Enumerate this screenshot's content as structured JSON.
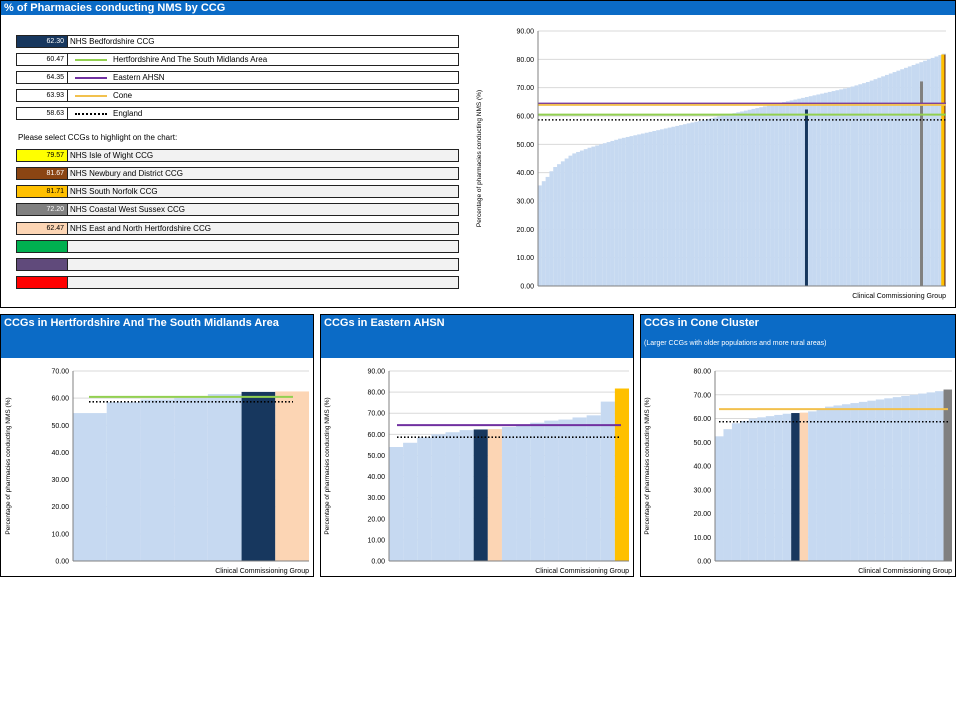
{
  "main_panel": {
    "title": "% of Pharmacies conducting NMS by CCG",
    "legend": [
      {
        "value": "62.30",
        "label": "NHS Bedfordshire CCG",
        "kind": "swatch",
        "color": "#17375e",
        "text_color": "#ffffff"
      },
      {
        "value": "60.47",
        "label": "Hertfordshire And The South Midlands Area",
        "kind": "line",
        "color": "#92d050"
      },
      {
        "value": "64.35",
        "label": "Eastern AHSN",
        "kind": "line",
        "color": "#7030a0"
      },
      {
        "value": "63.93",
        "label": "Cone",
        "kind": "line",
        "color": "#f2c14e"
      },
      {
        "value": "58.63",
        "label": "England",
        "kind": "dotted",
        "color": "#000000"
      }
    ],
    "select_prompt": "Please select CCGs to highlight on the chart:",
    "highlights": [
      {
        "value": "79.57",
        "label": "NHS Isle of Wight CCG",
        "color": "#ffff00",
        "text_color": "#000000"
      },
      {
        "value": "81.67",
        "label": "NHS Newbury and District CCG",
        "color": "#8b4513",
        "text_color": "#ffffff"
      },
      {
        "value": "81.71",
        "label": "NHS South Norfolk CCG",
        "color": "#ffc000",
        "text_color": "#000000"
      },
      {
        "value": "72.20",
        "label": "NHS Coastal West Sussex CCG",
        "color": "#808080",
        "text_color": "#ffffff"
      },
      {
        "value": "62.47",
        "label": "NHS East and North Hertfordshire CCG",
        "color": "#fcd5b4",
        "text_color": "#000000"
      },
      {
        "value": "",
        "label": "",
        "color": "#00b050",
        "text_color": "#000000"
      },
      {
        "value": "",
        "label": "",
        "color": "#604a7b",
        "text_color": "#000000"
      },
      {
        "value": "",
        "label": "",
        "color": "#ff0000",
        "text_color": "#000000"
      }
    ]
  },
  "sub_panels": [
    {
      "title": "CCGs in Hertfordshire And The South Midlands Area",
      "subtitle": ""
    },
    {
      "title": "CCGs in Eastern AHSN",
      "subtitle": ""
    },
    {
      "title": "CCGs in Cone Cluster",
      "subtitle": "(Larger CCGs with older populations and more rural areas)"
    }
  ],
  "colors": {
    "panel_header": "#0b6bc6",
    "bar": "#c6d9f1",
    "bedfordshire": "#17375e"
  },
  "chart_data": [
    {
      "type": "bar",
      "ylabel": "Percentage of pharmacies conducting NMS (%)",
      "xlabel": "Clinical Commissioning Group",
      "ylim": [
        0,
        90
      ],
      "yticks": [
        "0.00",
        "10.00",
        "20.00",
        "30.00",
        "40.00",
        "50.00",
        "60.00",
        "70.00",
        "80.00",
        "90.00"
      ],
      "values": [
        35.5,
        37.0,
        38.5,
        40.5,
        42.0,
        43.0,
        44.0,
        45.0,
        46.0,
        46.8,
        47.3,
        47.8,
        48.3,
        48.8,
        49.2,
        49.6,
        50.0,
        50.4,
        50.8,
        51.2,
        51.6,
        52.0,
        52.3,
        52.6,
        52.9,
        53.2,
        53.5,
        53.8,
        54.1,
        54.4,
        54.7,
        55.0,
        55.3,
        55.6,
        55.9,
        56.2,
        56.5,
        56.8,
        57.1,
        57.4,
        57.7,
        58.0,
        58.3,
        58.6,
        58.9,
        59.2,
        59.5,
        59.8,
        60.1,
        60.4,
        60.7,
        61.0,
        61.3,
        61.6,
        61.9,
        62.2,
        62.5,
        62.8,
        63.1,
        63.4,
        63.7,
        64.0,
        64.3,
        64.6,
        64.9,
        65.2,
        65.5,
        65.8,
        66.1,
        66.4,
        66.7,
        67.0,
        67.3,
        67.6,
        67.9,
        68.2,
        68.5,
        68.8,
        69.1,
        69.4,
        69.7,
        70.0,
        70.4,
        70.8,
        71.2,
        71.6,
        72.0,
        72.5,
        73.0,
        73.5,
        74.0,
        74.5,
        75.0,
        75.5,
        76.0,
        76.5,
        77.0,
        77.5,
        78.0,
        78.5,
        79.0,
        79.5,
        80.0,
        80.5,
        81.0,
        81.5,
        82.0
      ],
      "highlighted": [
        {
          "x_fraction": 0.658,
          "value": 62.3,
          "color": "#17375e"
        },
        {
          "x_fraction": 0.94,
          "value": 72.2,
          "color": "#808080"
        },
        {
          "x_fraction": 0.995,
          "value": 81.67,
          "color": "#8b4513"
        },
        {
          "x_fraction": 0.992,
          "value": 81.71,
          "color": "#ffc000"
        }
      ],
      "ref_lines": [
        {
          "value": 64.35,
          "color": "#7030a0"
        },
        {
          "value": 63.93,
          "color": "#f2c14e"
        },
        {
          "value": 60.47,
          "color": "#92d050"
        },
        {
          "value": 58.63,
          "color": "#000000",
          "dotted": true
        }
      ]
    },
    {
      "type": "bar",
      "ylabel": "Percentage of pharmacies conducting NMS (%)",
      "xlabel": "Clinical Commissioning Group",
      "ylim": [
        0,
        70
      ],
      "yticks": [
        "0.00",
        "10.00",
        "20.00",
        "30.00",
        "40.00",
        "50.00",
        "60.00",
        "70.00"
      ],
      "values": [
        54.5,
        58.5,
        59.5,
        60.0,
        61.5,
        62.3,
        62.47
      ],
      "bar_colors": [
        "#c6d9f1",
        "#c6d9f1",
        "#c6d9f1",
        "#c6d9f1",
        "#c6d9f1",
        "#17375e",
        "#fcd5b4"
      ],
      "ref_lines": [
        {
          "value": 60.47,
          "color": "#92d050"
        },
        {
          "value": 58.63,
          "color": "#000000",
          "dotted": true
        }
      ]
    },
    {
      "type": "bar",
      "ylabel": "Percentage of pharmacies conducting NMS (%)",
      "xlabel": "Clinical Commissioning Group",
      "ylim": [
        0,
        90
      ],
      "yticks": [
        "0.00",
        "10.00",
        "20.00",
        "30.00",
        "40.00",
        "50.00",
        "60.00",
        "70.00",
        "80.00",
        "90.00"
      ],
      "values": [
        54.0,
        56.0,
        58.5,
        60.0,
        61.0,
        62.0,
        62.3,
        62.47,
        63.5,
        64.5,
        65.5,
        66.5,
        67.0,
        68.0,
        69.0,
        75.5,
        81.71
      ],
      "bar_colors": [
        "#c6d9f1",
        "#c6d9f1",
        "#c6d9f1",
        "#c6d9f1",
        "#c6d9f1",
        "#c6d9f1",
        "#17375e",
        "#fcd5b4",
        "#c6d9f1",
        "#c6d9f1",
        "#c6d9f1",
        "#c6d9f1",
        "#c6d9f1",
        "#c6d9f1",
        "#c6d9f1",
        "#c6d9f1",
        "#ffc000"
      ],
      "ref_lines": [
        {
          "value": 64.35,
          "color": "#7030a0"
        },
        {
          "value": 58.63,
          "color": "#000000",
          "dotted": true
        }
      ]
    },
    {
      "type": "bar",
      "ylabel": "Percentage of pharmacies conducting NMS (%)",
      "xlabel": "Clinical Commissioning Group",
      "ylim": [
        0,
        80
      ],
      "yticks": [
        "0.00",
        "10.00",
        "20.00",
        "30.00",
        "40.00",
        "50.00",
        "60.00",
        "70.00",
        "80.00"
      ],
      "values": [
        52.5,
        55.5,
        58.0,
        59.0,
        60.0,
        60.5,
        61.0,
        61.5,
        62.0,
        62.3,
        62.47,
        63.0,
        64.0,
        65.0,
        65.5,
        66.0,
        66.5,
        67.0,
        67.5,
        68.0,
        68.5,
        69.0,
        69.5,
        70.0,
        70.5,
        71.0,
        71.5,
        72.2
      ],
      "bar_colors": [
        "#c6d9f1",
        "#c6d9f1",
        "#c6d9f1",
        "#c6d9f1",
        "#c6d9f1",
        "#c6d9f1",
        "#c6d9f1",
        "#c6d9f1",
        "#c6d9f1",
        "#17375e",
        "#fcd5b4",
        "#c6d9f1",
        "#c6d9f1",
        "#c6d9f1",
        "#c6d9f1",
        "#c6d9f1",
        "#c6d9f1",
        "#c6d9f1",
        "#c6d9f1",
        "#c6d9f1",
        "#c6d9f1",
        "#c6d9f1",
        "#c6d9f1",
        "#c6d9f1",
        "#c6d9f1",
        "#c6d9f1",
        "#c6d9f1",
        "#808080"
      ],
      "ref_lines": [
        {
          "value": 63.93,
          "color": "#f2c14e"
        },
        {
          "value": 58.63,
          "color": "#000000",
          "dotted": true
        }
      ]
    }
  ]
}
